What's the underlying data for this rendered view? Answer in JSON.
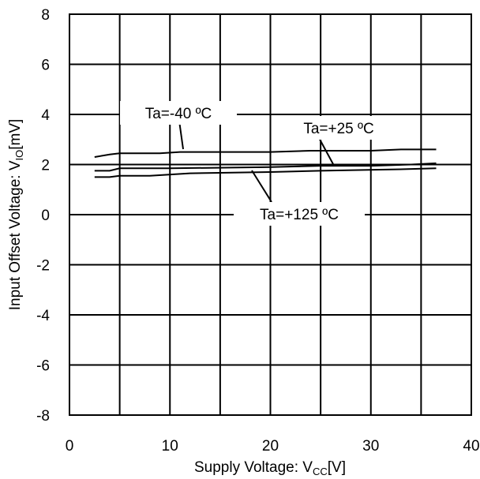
{
  "chart_data": {
    "type": "line",
    "xlabel": {
      "prefix": "Supply Voltage: V",
      "sub": "CC",
      "suffix": "[V]"
    },
    "ylabel": {
      "prefix": "Input Offset Voltage: V",
      "sub": "IO",
      "suffix": "[mV]"
    },
    "xlim": [
      0,
      40
    ],
    "ylim": [
      -8,
      8
    ],
    "xticks": [
      0,
      10,
      20,
      30,
      40
    ],
    "yticks": [
      -8,
      -6,
      -4,
      -2,
      0,
      2,
      4,
      6,
      8
    ],
    "grid": true,
    "series": [
      {
        "name": "Ta=-40 ºC",
        "x": [
          2.5,
          4,
          5,
          9,
          11,
          12,
          20,
          24,
          30,
          33,
          36.5
        ],
        "y": [
          2.3,
          2.4,
          2.45,
          2.45,
          2.5,
          2.5,
          2.5,
          2.55,
          2.55,
          2.6,
          2.6
        ]
      },
      {
        "name": "Ta=+25 ºC",
        "x": [
          2.5,
          4,
          5,
          10,
          20,
          25,
          30,
          34,
          36.5
        ],
        "y": [
          1.75,
          1.75,
          1.85,
          1.85,
          1.9,
          1.95,
          1.95,
          2.0,
          2.05
        ]
      },
      {
        "name": "Ta=+125 ºC",
        "x": [
          2.5,
          4,
          5,
          8,
          12,
          20,
          25,
          32,
          36.5
        ],
        "y": [
          1.5,
          1.5,
          1.55,
          1.55,
          1.65,
          1.7,
          1.75,
          1.8,
          1.85
        ]
      }
    ],
    "annotations": [
      {
        "text": "Ta=-40 ºC",
        "series": 0
      },
      {
        "text": "Ta=+25 ºC",
        "series": 1
      },
      {
        "text": "Ta=+125 ºC",
        "series": 2
      }
    ]
  }
}
